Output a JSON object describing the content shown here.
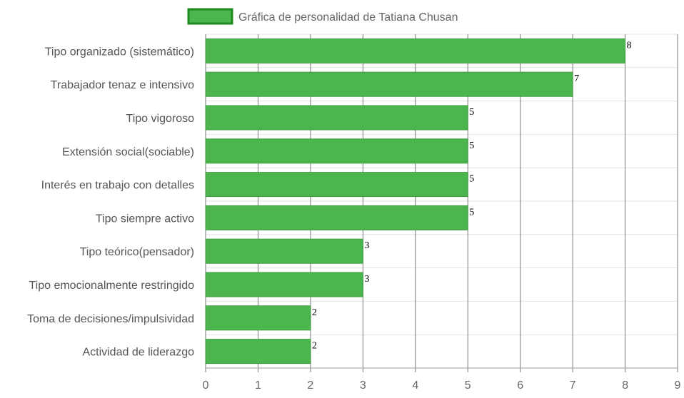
{
  "chart_data": {
    "type": "bar",
    "orientation": "horizontal",
    "categories": [
      "Tipo organizado (sistemático)",
      "Trabajador tenaz e intensivo",
      "Tipo vigoroso",
      "Extensión social(sociable)",
      "Interés en trabajo con detalles",
      "Tipo siempre activo",
      "Tipo teórico(pensador)",
      "Tipo emocionalmente restringido",
      "Toma de decisiones/impulsividad",
      "Actividad de liderazgo"
    ],
    "series": [
      {
        "name": "Gráfica de personalidad de Tatiana Chusan",
        "values": [
          8,
          7,
          5,
          5,
          5,
          5,
          3,
          3,
          2,
          2
        ]
      }
    ],
    "x_ticks": [
      "0",
      "1",
      "2",
      "3",
      "4",
      "5",
      "6",
      "7",
      "8",
      "9"
    ],
    "xlim": [
      0,
      9
    ],
    "grid": true,
    "legend_position": "top",
    "data_labels": true,
    "colors": {
      "bar_fill": "#4db54d",
      "bar_border": "#3f9a3f",
      "legend_border": "#1f8a1f",
      "grid": "#e3e3e3",
      "vertical_grid": "#7a7a7a"
    }
  }
}
